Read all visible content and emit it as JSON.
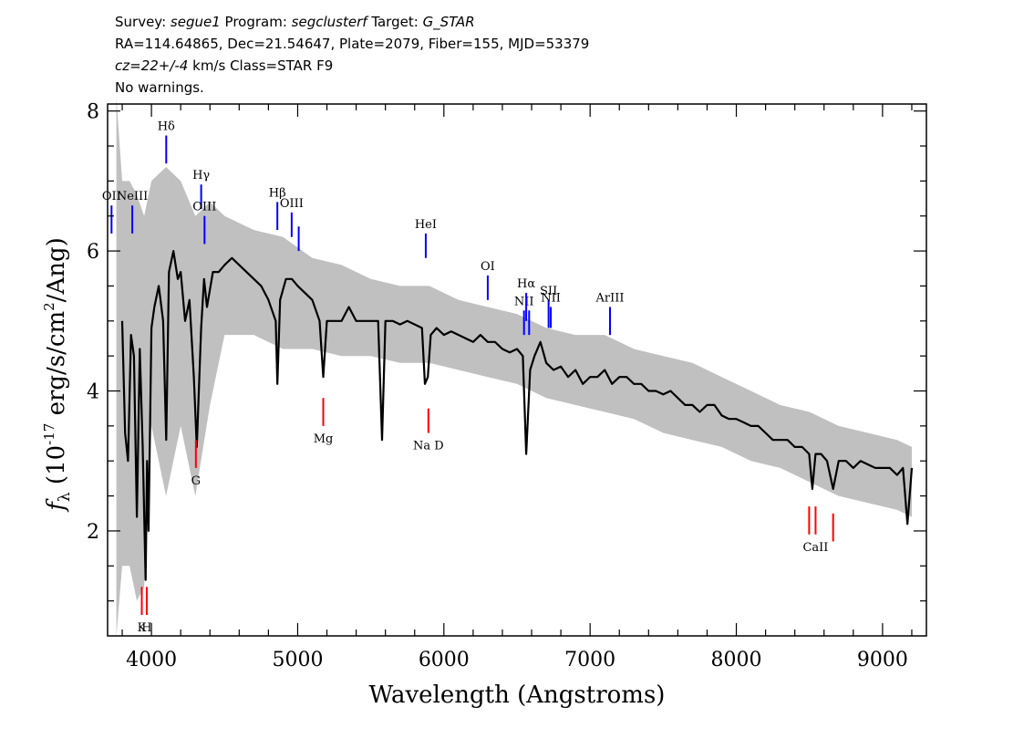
{
  "header": {
    "survey_label": "Survey:",
    "survey": "segue1",
    "program_label": "Program:",
    "program": "segclusterf",
    "target_label": "Target:",
    "target": "G_STAR",
    "line2": "RA=114.64865, Dec=21.54647, Plate=2079, Fiber=155, MJD=53379",
    "cz": "cz=22+/-4",
    "cz_rest": " km/s Class=STAR F9",
    "warnings": "No warnings."
  },
  "colors": {
    "flux": "#000000",
    "error": "#c0c0c0",
    "emission": "#0000ff",
    "absorption": "#ff0000"
  },
  "chart_data": {
    "type": "line",
    "xlabel": "Wavelength (Angstroms)",
    "ylabel": "f_λ (10^-17 erg/s/cm^2/Ang)",
    "xlim": [
      3700,
      9300
    ],
    "ylim": [
      0.5,
      8.1
    ],
    "xticks": [
      4000,
      5000,
      6000,
      7000,
      8000,
      9000
    ],
    "yticks": [
      2,
      4,
      6,
      8
    ],
    "grid": false,
    "series": [
      {
        "role": "flux",
        "x": [
          3800,
          3820,
          3840,
          3860,
          3880,
          3900,
          3920,
          3940,
          3960,
          3970,
          3980,
          4000,
          4020,
          4050,
          4080,
          4101,
          4120,
          4150,
          4180,
          4200,
          4230,
          4260,
          4290,
          4310,
          4340,
          4360,
          4380,
          4420,
          4460,
          4500,
          4550,
          4600,
          4650,
          4700,
          4750,
          4800,
          4850,
          4861,
          4880,
          4920,
          4960,
          5000,
          5050,
          5100,
          5150,
          5175,
          5200,
          5250,
          5300,
          5350,
          5400,
          5450,
          5500,
          5550,
          5577,
          5600,
          5650,
          5700,
          5750,
          5800,
          5850,
          5870,
          5890,
          5910,
          5950,
          6000,
          6050,
          6100,
          6150,
          6200,
          6250,
          6300,
          6350,
          6400,
          6450,
          6500,
          6540,
          6563,
          6590,
          6620,
          6660,
          6700,
          6750,
          6800,
          6850,
          6900,
          6950,
          7000,
          7050,
          7100,
          7150,
          7200,
          7250,
          7300,
          7350,
          7400,
          7450,
          7500,
          7550,
          7600,
          7650,
          7700,
          7750,
          7800,
          7850,
          7900,
          7950,
          8000,
          8050,
          8100,
          8150,
          8200,
          8250,
          8300,
          8350,
          8400,
          8450,
          8498,
          8520,
          8542,
          8580,
          8620,
          8662,
          8700,
          8750,
          8800,
          8850,
          8900,
          8950,
          9000,
          9050,
          9100,
          9140,
          9170,
          9200
        ],
        "y": [
          5.0,
          3.4,
          3.0,
          4.8,
          4.5,
          2.2,
          4.6,
          3.2,
          1.3,
          3.0,
          2.0,
          4.9,
          5.2,
          5.5,
          5.0,
          3.3,
          5.7,
          6.0,
          5.6,
          5.7,
          5.0,
          5.3,
          4.2,
          3.2,
          4.9,
          5.6,
          5.2,
          5.7,
          5.7,
          5.8,
          5.9,
          5.8,
          5.7,
          5.6,
          5.5,
          5.3,
          5.0,
          4.1,
          5.3,
          5.6,
          5.6,
          5.5,
          5.4,
          5.3,
          5.0,
          4.2,
          5.0,
          5.0,
          5.0,
          5.2,
          5.0,
          5.0,
          5.0,
          5.0,
          3.3,
          5.0,
          5.0,
          4.95,
          5.0,
          4.95,
          4.9,
          4.1,
          4.2,
          4.8,
          4.9,
          4.8,
          4.85,
          4.8,
          4.75,
          4.7,
          4.8,
          4.7,
          4.7,
          4.6,
          4.55,
          4.6,
          4.5,
          3.1,
          4.3,
          4.5,
          4.7,
          4.4,
          4.3,
          4.35,
          4.2,
          4.3,
          4.1,
          4.2,
          4.2,
          4.3,
          4.1,
          4.2,
          4.2,
          4.1,
          4.1,
          4.0,
          4.0,
          3.95,
          4.0,
          3.9,
          3.8,
          3.8,
          3.7,
          3.8,
          3.8,
          3.65,
          3.6,
          3.6,
          3.55,
          3.5,
          3.5,
          3.4,
          3.3,
          3.3,
          3.3,
          3.2,
          3.2,
          3.1,
          2.6,
          3.1,
          3.1,
          3.0,
          2.6,
          3.0,
          3.0,
          2.9,
          3.0,
          2.95,
          2.9,
          2.9,
          2.9,
          2.8,
          2.9,
          2.1,
          2.9
        ]
      },
      {
        "role": "error-envelope",
        "x": [
          3760,
          3800,
          3850,
          3900,
          3950,
          4000,
          4100,
          4200,
          4300,
          4400,
          4500,
          4700,
          4900,
          5100,
          5300,
          5500,
          5700,
          5900,
          6100,
          6300,
          6500,
          6700,
          6900,
          7100,
          7300,
          7500,
          7700,
          7900,
          8100,
          8300,
          8500,
          8700,
          8900,
          9100,
          9200
        ],
        "upper": [
          8.2,
          7.0,
          7.0,
          6.8,
          6.5,
          7.0,
          7.2,
          7.0,
          6.5,
          6.7,
          6.5,
          6.3,
          6.2,
          5.9,
          5.8,
          5.6,
          5.5,
          5.5,
          5.3,
          5.2,
          5.1,
          4.9,
          4.8,
          4.8,
          4.6,
          4.5,
          4.4,
          4.2,
          4.0,
          3.8,
          3.7,
          3.5,
          3.4,
          3.3,
          3.2
        ],
        "lower": [
          0.5,
          1.5,
          1.5,
          1.0,
          1.2,
          3.5,
          2.5,
          3.5,
          2.5,
          3.8,
          4.8,
          4.8,
          4.6,
          4.6,
          4.5,
          4.5,
          4.4,
          4.4,
          4.3,
          4.2,
          4.1,
          3.9,
          3.8,
          3.7,
          3.6,
          3.4,
          3.3,
          3.2,
          3.0,
          2.9,
          2.7,
          2.5,
          2.4,
          2.3,
          2.2
        ]
      }
    ],
    "line_markers": [
      {
        "label": "OII",
        "wave": 3727,
        "y_bottom": 6.25,
        "y_top": 6.65,
        "kind": "emission"
      },
      {
        "label": "NeIII",
        "wave": 3869,
        "y_bottom": 6.25,
        "y_top": 6.65,
        "kind": "emission"
      },
      {
        "label": "Hδ",
        "wave": 4101,
        "y_bottom": 7.25,
        "y_top": 7.65,
        "kind": "emission"
      },
      {
        "label": "Hγ",
        "wave": 4340,
        "y_bottom": 6.6,
        "y_top": 6.95,
        "kind": "emission"
      },
      {
        "label": "OIII",
        "wave": 4363,
        "y_bottom": 6.1,
        "y_top": 6.5,
        "kind": "emission"
      },
      {
        "label": "Hβ",
        "wave": 4861,
        "y_bottom": 6.3,
        "y_top": 6.7,
        "kind": "emission"
      },
      {
        "label": "OIII",
        "wave": 4959,
        "y_bottom": 6.2,
        "y_top": 6.55,
        "kind": "emission"
      },
      {
        "label": "",
        "wave": 5007,
        "y_bottom": 6.0,
        "y_top": 6.35,
        "kind": "emission"
      },
      {
        "label": "HeI",
        "wave": 5876,
        "y_bottom": 5.9,
        "y_top": 6.25,
        "kind": "emission"
      },
      {
        "label": "OI",
        "wave": 6300,
        "y_bottom": 5.3,
        "y_top": 5.65,
        "kind": "emission"
      },
      {
        "label": "NII",
        "wave": 6548,
        "y_bottom": 4.8,
        "y_top": 5.15,
        "kind": "emission"
      },
      {
        "label": "Hα",
        "wave": 6563,
        "y_bottom": 5.0,
        "y_top": 5.4,
        "kind": "emission"
      },
      {
        "label": "",
        "wave": 6583,
        "y_bottom": 4.8,
        "y_top": 5.15,
        "kind": "emission"
      },
      {
        "label": "SII",
        "wave": 6716,
        "y_bottom": 4.9,
        "y_top": 5.3,
        "kind": "emission"
      },
      {
        "label": "NII",
        "wave": 6731,
        "y_bottom": 4.9,
        "y_top": 5.2,
        "kind": "emission"
      },
      {
        "label": "ArIII",
        "wave": 7136,
        "y_bottom": 4.8,
        "y_top": 5.2,
        "kind": "emission"
      },
      {
        "label": "K",
        "wave": 3934,
        "y_bottom": 0.8,
        "y_top": 1.2,
        "kind": "absorption"
      },
      {
        "label": "H",
        "wave": 3968,
        "y_bottom": 0.8,
        "y_top": 1.2,
        "kind": "absorption"
      },
      {
        "label": "G",
        "wave": 4304,
        "y_bottom": 2.9,
        "y_top": 3.3,
        "kind": "absorption"
      },
      {
        "label": "Mg",
        "wave": 5175,
        "y_bottom": 3.5,
        "y_top": 3.9,
        "kind": "absorption"
      },
      {
        "label": "Na D",
        "wave": 5894,
        "y_bottom": 3.4,
        "y_top": 3.75,
        "kind": "absorption"
      },
      {
        "label": "",
        "wave": 8498,
        "y_bottom": 1.95,
        "y_top": 2.35,
        "kind": "absorption"
      },
      {
        "label": "CaII",
        "wave": 8542,
        "y_bottom": 1.95,
        "y_top": 2.35,
        "kind": "absorption"
      },
      {
        "label": "",
        "wave": 8662,
        "y_bottom": 1.85,
        "y_top": 2.25,
        "kind": "absorption"
      }
    ]
  }
}
